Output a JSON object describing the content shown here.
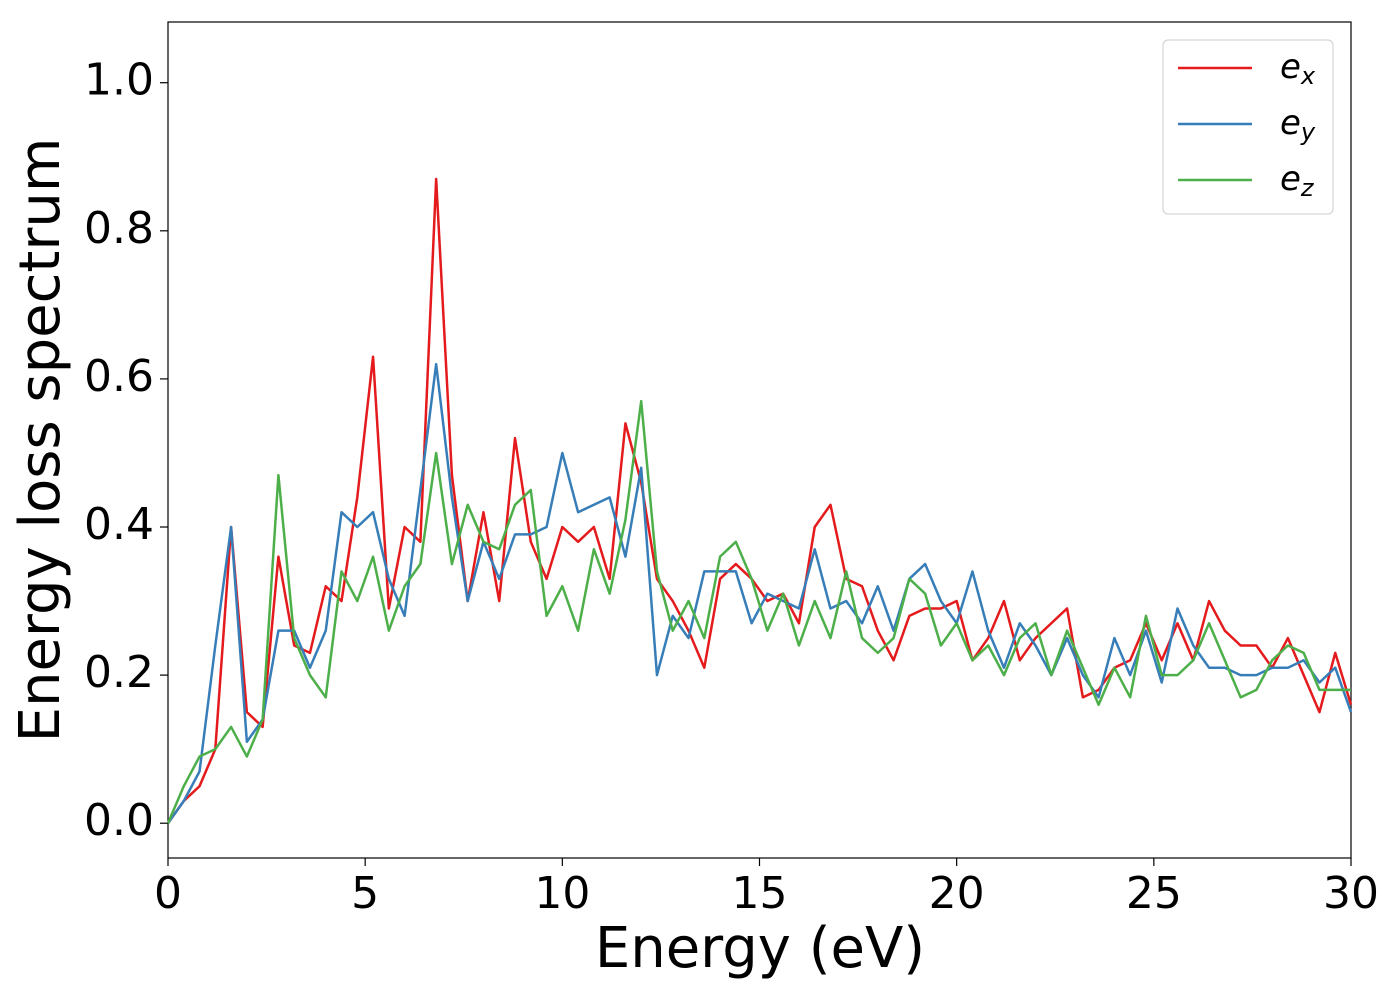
{
  "chart_data": {
    "type": "line",
    "xlabel": "Energy (eV)",
    "ylabel": "Energy loss spectrum",
    "xlim": [
      0,
      30
    ],
    "ylim": [
      -0.047,
      1.082
    ],
    "xticks": [
      0,
      5,
      10,
      15,
      20,
      25,
      30
    ],
    "yticks": [
      {
        "value": 0,
        "label": "0.0"
      },
      0.2,
      0.4,
      0.6,
      0.8,
      {
        "value": 1,
        "label": "1.0"
      }
    ],
    "legend": "upper right",
    "x": [
      0,
      0.4,
      0.8,
      1.2,
      1.6,
      2.0,
      2.4,
      2.8,
      3.2,
      3.6,
      4.0,
      4.4,
      4.8,
      5.2,
      5.6,
      6.0,
      6.4,
      6.8,
      7.2,
      7.6,
      8.0,
      8.4,
      8.8,
      9.2,
      9.6,
      10.0,
      10.4,
      10.8,
      11.2,
      11.6,
      12.0,
      12.4,
      12.8,
      13.2,
      13.6,
      14.0,
      14.4,
      14.8,
      15.2,
      15.6,
      16.0,
      16.4,
      16.8,
      17.2,
      17.6,
      18.0,
      18.4,
      18.8,
      19.2,
      19.6,
      20.0,
      20.4,
      20.8,
      21.2,
      21.6,
      22.0,
      22.4,
      22.8,
      23.2,
      23.6,
      24.0,
      24.4,
      24.8,
      25.2,
      25.6,
      26.0,
      26.4,
      26.8,
      27.2,
      27.6,
      28.0,
      28.4,
      28.8,
      29.2,
      29.6,
      30.0
    ],
    "series": [
      {
        "name": "ex",
        "color": "#e41a1c",
        "values": [
          0.0,
          0.03,
          0.05,
          0.1,
          0.4,
          0.15,
          0.13,
          0.36,
          0.24,
          0.23,
          0.32,
          0.3,
          0.44,
          0.63,
          0.29,
          0.4,
          0.38,
          0.87,
          0.47,
          0.3,
          0.42,
          0.3,
          0.52,
          0.38,
          0.33,
          0.4,
          0.38,
          0.4,
          0.33,
          0.54,
          0.46,
          0.33,
          0.3,
          0.26,
          0.21,
          0.33,
          0.35,
          0.33,
          0.3,
          0.31,
          0.27,
          0.4,
          0.43,
          0.33,
          0.32,
          0.26,
          0.22,
          0.28,
          0.29,
          0.29,
          0.3,
          0.22,
          0.25,
          0.3,
          0.22,
          0.25,
          0.27,
          0.29,
          0.17,
          0.18,
          0.21,
          0.22,
          0.27,
          0.22,
          0.27,
          0.22,
          0.3,
          0.26,
          0.24,
          0.24,
          0.21,
          0.25,
          0.2,
          0.15,
          0.23,
          0.16
        ]
      },
      {
        "name": "ey",
        "color": "#377eb8",
        "values": [
          0.0,
          0.03,
          0.07,
          0.24,
          0.4,
          0.11,
          0.14,
          0.26,
          0.26,
          0.21,
          0.26,
          0.42,
          0.4,
          0.42,
          0.33,
          0.28,
          0.45,
          0.62,
          0.44,
          0.3,
          0.38,
          0.33,
          0.39,
          0.39,
          0.4,
          0.5,
          0.42,
          0.43,
          0.44,
          0.36,
          0.48,
          0.2,
          0.28,
          0.25,
          0.34,
          0.34,
          0.34,
          0.27,
          0.31,
          0.3,
          0.29,
          0.37,
          0.29,
          0.3,
          0.27,
          0.32,
          0.26,
          0.33,
          0.35,
          0.3,
          0.27,
          0.34,
          0.26,
          0.21,
          0.27,
          0.24,
          0.2,
          0.25,
          0.2,
          0.17,
          0.25,
          0.2,
          0.26,
          0.19,
          0.29,
          0.24,
          0.21,
          0.21,
          0.2,
          0.2,
          0.21,
          0.21,
          0.22,
          0.19,
          0.21,
          0.15
        ]
      },
      {
        "name": "ez",
        "color": "#4daf4a",
        "values": [
          0.0,
          0.05,
          0.09,
          0.1,
          0.13,
          0.09,
          0.14,
          0.47,
          0.25,
          0.2,
          0.17,
          0.34,
          0.3,
          0.36,
          0.26,
          0.32,
          0.35,
          0.5,
          0.35,
          0.43,
          0.38,
          0.37,
          0.43,
          0.45,
          0.28,
          0.32,
          0.26,
          0.37,
          0.31,
          0.41,
          0.57,
          0.34,
          0.26,
          0.3,
          0.25,
          0.36,
          0.38,
          0.33,
          0.26,
          0.31,
          0.24,
          0.3,
          0.25,
          0.34,
          0.25,
          0.23,
          0.25,
          0.33,
          0.31,
          0.24,
          0.27,
          0.22,
          0.24,
          0.2,
          0.25,
          0.27,
          0.2,
          0.26,
          0.21,
          0.16,
          0.21,
          0.17,
          0.28,
          0.2,
          0.2,
          0.22,
          0.27,
          0.22,
          0.17,
          0.18,
          0.22,
          0.24,
          0.23,
          0.18,
          0.18,
          0.18
        ]
      }
    ]
  }
}
